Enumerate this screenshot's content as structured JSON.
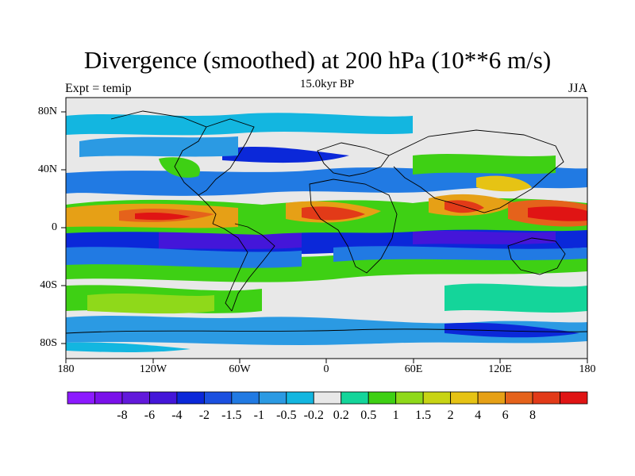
{
  "title": "Divergence (smoothed) at 200 hPa (10**6 m/s)",
  "subtitle_center": "15.0kyr BP",
  "subtitle_left": "Expt = temip",
  "subtitle_right": "JJA",
  "lat_labels": [
    "80N",
    "40N",
    "0",
    "40S",
    "80S"
  ],
  "lon_labels": [
    "180",
    "120W",
    "60W",
    "0",
    "60E",
    "120E",
    "180"
  ],
  "colorbar": {
    "colors": [
      "#8c1aff",
      "#7a10ea",
      "#6219db",
      "#4416d9",
      "#0b28d9",
      "#1b50e0",
      "#217ae3",
      "#2b9ae3",
      "#13b6e0",
      "#e8e8e8",
      "#14d59a",
      "#3ed014",
      "#8fd91a",
      "#c8d414",
      "#e6c314",
      "#e6a016",
      "#e5621b",
      "#e23a18",
      "#e01414"
    ],
    "labels": [
      "-8",
      "-6",
      "-4",
      "-2",
      "-1.5",
      "-1",
      "-0.5",
      "-0.2",
      "0.2",
      "0.5",
      "1",
      "1.5",
      "2",
      "4",
      "6",
      "8"
    ]
  }
}
